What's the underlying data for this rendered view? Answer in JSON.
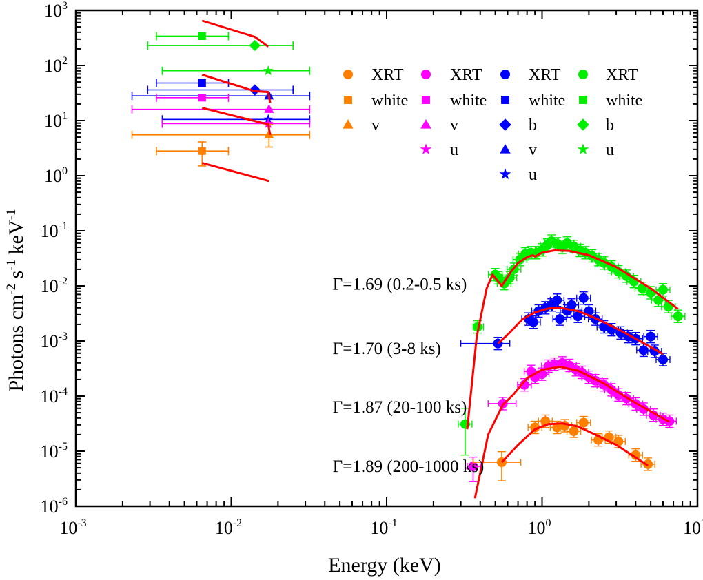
{
  "chart_data": {
    "type": "scatter",
    "title": "",
    "xlabel": "Energy (keV)",
    "ylabel": "Photons cm^-2 s^-1 keV^-1",
    "xscale": "log",
    "yscale": "log",
    "xlim": [
      0.001,
      10
    ],
    "ylim": [
      1e-06,
      1000
    ],
    "grid": false,
    "xticks": [
      {
        "base": "10",
        "exp": "-3",
        "value": 0.001
      },
      {
        "base": "10",
        "exp": "-2",
        "value": 0.01
      },
      {
        "base": "10",
        "exp": "-1",
        "value": 0.1
      },
      {
        "base": "10",
        "exp": "0",
        "value": 1
      },
      {
        "base": "10",
        "exp": "1",
        "value": 10
      }
    ],
    "yticks": [
      {
        "base": "10",
        "exp": "3",
        "value": 1000
      },
      {
        "base": "10",
        "exp": "2",
        "value": 100
      },
      {
        "base": "10",
        "exp": "1",
        "value": 10
      },
      {
        "base": "10",
        "exp": "0",
        "value": 1
      },
      {
        "base": "10",
        "exp": "-1",
        "value": 0.1
      },
      {
        "base": "10",
        "exp": "-2",
        "value": 0.01
      },
      {
        "base": "10",
        "exp": "-3",
        "value": 0.001
      },
      {
        "base": "10",
        "exp": "-4",
        "value": 0.0001
      },
      {
        "base": "10",
        "exp": "-5",
        "value": 1e-05
      },
      {
        "base": "10",
        "exp": "-6",
        "value": 1e-06
      }
    ],
    "ylabel_parts": {
      "main": "Photons cm",
      "exp1": "-2",
      "mid": " s",
      "exp2": "-1",
      "end": " keV",
      "exp3": "-1"
    },
    "legend": {
      "placement": "top-right",
      "columns": [
        {
          "color": "#ff8000",
          "entries": [
            {
              "marker": "circle",
              "label": "XRT"
            },
            {
              "marker": "square",
              "label": "white"
            },
            {
              "marker": "triangle",
              "label": "v"
            }
          ]
        },
        {
          "color": "#ff00ff",
          "entries": [
            {
              "marker": "circle",
              "label": "XRT"
            },
            {
              "marker": "square",
              "label": "white"
            },
            {
              "marker": "triangle",
              "label": "v"
            },
            {
              "marker": "star",
              "label": "u"
            }
          ]
        },
        {
          "color": "#0000ff",
          "entries": [
            {
              "marker": "circle",
              "label": "XRT"
            },
            {
              "marker": "square",
              "label": "white"
            },
            {
              "marker": "diamond",
              "label": "b"
            },
            {
              "marker": "triangle",
              "label": "v"
            },
            {
              "marker": "star",
              "label": "u"
            }
          ]
        },
        {
          "color": "#00ee00",
          "entries": [
            {
              "marker": "circle",
              "label": "XRT"
            },
            {
              "marker": "square",
              "label": "white"
            },
            {
              "marker": "diamond",
              "label": "b"
            },
            {
              "marker": "star",
              "label": "u"
            }
          ]
        }
      ]
    },
    "annotations": [
      {
        "text": "Γ=1.69 (0.2-0.5 ks)",
        "x": 0.045,
        "y": 0.011
      },
      {
        "text": "Γ=1.70 (3-8 ks)",
        "x": 0.045,
        "y": 0.00075
      },
      {
        "text": "Γ=1.87 (20-100 ks)",
        "x": 0.045,
        "y": 6.5e-05
      },
      {
        "text": "Γ=1.89 (200-1000 ks)",
        "x": 0.045,
        "y": 5.5e-06
      }
    ],
    "model_color": "#ff0000",
    "series": [
      {
        "name": "0.2-0.5 ks",
        "color": "#00ee00",
        "gamma": 1.69,
        "uvot": [
          {
            "filter": "white",
            "marker": "square",
            "x": 0.0065,
            "y": 340,
            "xlo": 0.0033,
            "xhi": 0.0096
          },
          {
            "filter": "b",
            "marker": "diamond",
            "x": 0.0142,
            "y": 230,
            "xlo": 0.0029,
            "xhi": 0.025
          },
          {
            "filter": "u",
            "marker": "star",
            "x": 0.0173,
            "y": 80,
            "xlo": 0.0036,
            "xhi": 0.032
          }
        ],
        "xrt": [
          {
            "x": 0.32,
            "y": 3.1e-05,
            "ylo": 8.5e-06,
            "yhi": 6e-05
          },
          {
            "x": 0.385,
            "y": 0.0018,
            "xlo": 0.36,
            "xhi": 0.42
          },
          {
            "x": 0.5,
            "y": 0.016
          },
          {
            "x": 0.52,
            "y": 0.014
          },
          {
            "x": 0.57,
            "y": 0.011
          },
          {
            "x": 0.62,
            "y": 0.014
          },
          {
            "x": 0.66,
            "y": 0.02
          },
          {
            "x": 0.72,
            "y": 0.03
          },
          {
            "x": 0.78,
            "y": 0.038
          },
          {
            "x": 0.85,
            "y": 0.04
          },
          {
            "x": 0.92,
            "y": 0.04
          },
          {
            "x": 1.0,
            "y": 0.045
          },
          {
            "x": 1.08,
            "y": 0.055
          },
          {
            "x": 1.15,
            "y": 0.065
          },
          {
            "x": 1.25,
            "y": 0.058
          },
          {
            "x": 1.35,
            "y": 0.05
          },
          {
            "x": 1.45,
            "y": 0.06
          },
          {
            "x": 1.6,
            "y": 0.052
          },
          {
            "x": 1.75,
            "y": 0.044
          },
          {
            "x": 1.9,
            "y": 0.04
          },
          {
            "x": 2.1,
            "y": 0.035
          },
          {
            "x": 2.3,
            "y": 0.03
          },
          {
            "x": 2.5,
            "y": 0.026
          },
          {
            "x": 2.8,
            "y": 0.022
          },
          {
            "x": 3.1,
            "y": 0.018
          },
          {
            "x": 3.5,
            "y": 0.015
          },
          {
            "x": 3.9,
            "y": 0.012
          },
          {
            "x": 4.4,
            "y": 0.009
          },
          {
            "x": 5.0,
            "y": 0.0075
          },
          {
            "x": 5.6,
            "y": 0.0055
          },
          {
            "x": 6.0,
            "y": 0.0085
          },
          {
            "x": 6.5,
            "y": 0.0042
          },
          {
            "x": 7.5,
            "y": 0.0028
          }
        ],
        "model": [
          {
            "x": 0.0065,
            "y": 650
          },
          {
            "x": 0.0142,
            "y": 330
          },
          {
            "x": 0.0173,
            "y": 220
          }
        ],
        "model_xrt": [
          {
            "x": 0.33,
            "y": 2.5e-05
          },
          {
            "x": 0.38,
            "y": 0.0012
          },
          {
            "x": 0.44,
            "y": 0.009
          },
          {
            "x": 0.48,
            "y": 0.016
          },
          {
            "x": 0.55,
            "y": 0.01
          },
          {
            "x": 0.63,
            "y": 0.018
          },
          {
            "x": 0.7,
            "y": 0.026
          },
          {
            "x": 0.8,
            "y": 0.033
          },
          {
            "x": 0.87,
            "y": 0.036
          },
          {
            "x": 0.9,
            "y": 0.034
          },
          {
            "x": 1.0,
            "y": 0.04
          },
          {
            "x": 1.2,
            "y": 0.044
          },
          {
            "x": 1.5,
            "y": 0.043
          },
          {
            "x": 2.0,
            "y": 0.036
          },
          {
            "x": 3.0,
            "y": 0.022
          },
          {
            "x": 5.0,
            "y": 0.009
          },
          {
            "x": 7.5,
            "y": 0.0038
          }
        ]
      },
      {
        "name": "3-8 ks",
        "color": "#0000ff",
        "gamma": 1.7,
        "uvot": [
          {
            "filter": "white",
            "marker": "square",
            "x": 0.0065,
            "y": 48,
            "xlo": 0.0033,
            "xhi": 0.0096
          },
          {
            "filter": "b",
            "marker": "diamond",
            "x": 0.0142,
            "y": 36,
            "xlo": 0.0029,
            "xhi": 0.025
          },
          {
            "filter": "v",
            "marker": "triangle",
            "x": 0.0175,
            "y": 28,
            "xlo": 0.0023,
            "xhi": 0.032
          },
          {
            "filter": "u",
            "marker": "star",
            "x": 0.0173,
            "y": 10.5,
            "xlo": 0.0036,
            "xhi": 0.032
          }
        ],
        "xrt": [
          {
            "x": 0.52,
            "y": 0.0009,
            "xlo": 0.3,
            "xhi": 0.62
          },
          {
            "x": 0.82,
            "y": 0.0025
          },
          {
            "x": 0.88,
            "y": 0.0022
          },
          {
            "x": 0.95,
            "y": 0.0035
          },
          {
            "x": 1.05,
            "y": 0.004
          },
          {
            "x": 1.15,
            "y": 0.0045
          },
          {
            "x": 1.25,
            "y": 0.0055
          },
          {
            "x": 1.3,
            "y": 0.0025
          },
          {
            "x": 1.45,
            "y": 0.0035
          },
          {
            "x": 1.55,
            "y": 0.0045
          },
          {
            "x": 1.7,
            "y": 0.0028
          },
          {
            "x": 1.85,
            "y": 0.006
          },
          {
            "x": 2.0,
            "y": 0.0035
          },
          {
            "x": 2.2,
            "y": 0.0025
          },
          {
            "x": 2.5,
            "y": 0.0018
          },
          {
            "x": 2.8,
            "y": 0.0016
          },
          {
            "x": 3.2,
            "y": 0.0014
          },
          {
            "x": 3.6,
            "y": 0.0012
          },
          {
            "x": 4.0,
            "y": 0.0011
          },
          {
            "x": 4.5,
            "y": 0.00068
          },
          {
            "x": 5.0,
            "y": 0.0012
          },
          {
            "x": 5.3,
            "y": 0.00065
          },
          {
            "x": 6.0,
            "y": 0.00046
          }
        ],
        "model": [
          {
            "x": 0.0065,
            "y": 68
          },
          {
            "x": 0.0142,
            "y": 34
          },
          {
            "x": 0.0173,
            "y": 33
          },
          {
            "x": 0.0178,
            "y": 21
          }
        ],
        "model_xrt": [
          {
            "x": 0.52,
            "y": 0.0009
          },
          {
            "x": 0.6,
            "y": 0.0013
          },
          {
            "x": 0.75,
            "y": 0.0025
          },
          {
            "x": 0.9,
            "y": 0.0033
          },
          {
            "x": 1.1,
            "y": 0.0039
          },
          {
            "x": 1.3,
            "y": 0.004
          },
          {
            "x": 1.7,
            "y": 0.0035
          },
          {
            "x": 2.2,
            "y": 0.0026
          },
          {
            "x": 3.0,
            "y": 0.0017
          },
          {
            "x": 4.0,
            "y": 0.0011
          },
          {
            "x": 6.0,
            "y": 0.00058
          }
        ]
      },
      {
        "name": "20-100 ks",
        "color": "#ff00ff",
        "gamma": 1.87,
        "uvot": [
          {
            "filter": "white",
            "marker": "square",
            "x": 0.0065,
            "y": 26,
            "xlo": 0.0033,
            "xhi": 0.0096
          },
          {
            "filter": "v",
            "marker": "triangle",
            "x": 0.0175,
            "y": 16,
            "xlo": 0.0023,
            "xhi": 0.032
          },
          {
            "filter": "u",
            "marker": "star",
            "x": 0.0173,
            "y": 8.8,
            "xlo": 0.0036,
            "xhi": 0.032
          }
        ],
        "xrt": [
          {
            "x": 0.36,
            "y": 5.3e-06,
            "xlo": 0.33,
            "xhi": 0.4,
            "ylo": 2.8e-06,
            "yhi": 7.8e-06
          },
          {
            "x": 0.56,
            "y": 7.3e-05,
            "xlo": 0.45,
            "xhi": 0.68
          },
          {
            "x": 0.77,
            "y": 0.00016
          },
          {
            "x": 0.85,
            "y": 0.00028
          },
          {
            "x": 0.9,
            "y": 0.00022
          },
          {
            "x": 1.0,
            "y": 0.00025
          },
          {
            "x": 1.1,
            "y": 0.00035
          },
          {
            "x": 1.2,
            "y": 0.00038
          },
          {
            "x": 1.35,
            "y": 0.0004
          },
          {
            "x": 1.5,
            "y": 0.00036
          },
          {
            "x": 1.65,
            "y": 0.0003
          },
          {
            "x": 1.8,
            "y": 0.00027
          },
          {
            "x": 2.0,
            "y": 0.00022
          },
          {
            "x": 2.2,
            "y": 0.00019
          },
          {
            "x": 2.5,
            "y": 0.00016
          },
          {
            "x": 2.8,
            "y": 0.00013
          },
          {
            "x": 3.1,
            "y": 0.000105
          },
          {
            "x": 3.5,
            "y": 9e-05
          },
          {
            "x": 4.0,
            "y": 7.2e-05
          },
          {
            "x": 4.5,
            "y": 5.8e-05
          },
          {
            "x": 5.2,
            "y": 4.5e-05
          },
          {
            "x": 6.0,
            "y": 3.8e-05
          },
          {
            "x": 6.6,
            "y": 3.5e-05
          }
        ],
        "model": [
          {
            "x": 0.0065,
            "y": 17
          },
          {
            "x": 0.0173,
            "y": 8.5
          },
          {
            "x": 0.0178,
            "y": 5.5
          }
        ],
        "model_xrt": [
          {
            "x": 0.37,
            "y": 1.4e-06
          },
          {
            "x": 0.45,
            "y": 2e-05
          },
          {
            "x": 0.56,
            "y": 7e-05
          },
          {
            "x": 0.65,
            "y": 0.000105
          },
          {
            "x": 0.8,
            "y": 0.00021
          },
          {
            "x": 1.0,
            "y": 0.0003
          },
          {
            "x": 1.3,
            "y": 0.00034
          },
          {
            "x": 1.7,
            "y": 0.00029
          },
          {
            "x": 2.5,
            "y": 0.00017
          },
          {
            "x": 4.0,
            "y": 7.5e-05
          },
          {
            "x": 6.6,
            "y": 3.4e-05
          }
        ]
      },
      {
        "name": "200-1000 ks",
        "color": "#ff8000",
        "gamma": 1.89,
        "uvot": [
          {
            "filter": "white",
            "marker": "square",
            "x": 0.0065,
            "y": 2.8,
            "xlo": 0.0033,
            "xhi": 0.0096,
            "ylo": 1.5,
            "yhi": 4.1
          },
          {
            "filter": "v",
            "marker": "triangle",
            "x": 0.0175,
            "y": 5.5,
            "xlo": 0.0023,
            "xhi": 0.032,
            "ylo": 3.3,
            "yhi": 8.5
          }
        ],
        "xrt": [
          {
            "x": 0.55,
            "y": 6.3e-06,
            "xlo": 0.36,
            "xhi": 0.73,
            "ylo": 2.9e-06,
            "yhi": 9.8e-06
          },
          {
            "x": 0.9,
            "y": 2.7e-05
          },
          {
            "x": 1.05,
            "y": 3.5e-05
          },
          {
            "x": 1.25,
            "y": 2.7e-05
          },
          {
            "x": 1.4,
            "y": 2.9e-05
          },
          {
            "x": 1.6,
            "y": 2.3e-05
          },
          {
            "x": 1.85,
            "y": 3.3e-05
          },
          {
            "x": 2.3,
            "y": 1.6e-05
          },
          {
            "x": 2.7,
            "y": 1.8e-05
          },
          {
            "x": 3.1,
            "y": 1.5e-05
          },
          {
            "x": 4.0,
            "y": 8.5e-06
          },
          {
            "x": 4.8,
            "y": 5.8e-06
          }
        ],
        "model": [
          {
            "x": 0.0065,
            "y": 1.7
          },
          {
            "x": 0.0175,
            "y": 0.8
          }
        ],
        "model_xrt": [
          {
            "x": 0.55,
            "y": 6.3e-06
          },
          {
            "x": 0.7,
            "y": 1.3e-05
          },
          {
            "x": 0.9,
            "y": 2.5e-05
          },
          {
            "x": 1.1,
            "y": 3.1e-05
          },
          {
            "x": 1.35,
            "y": 3.2e-05
          },
          {
            "x": 1.7,
            "y": 2.8e-05
          },
          {
            "x": 2.2,
            "y": 2e-05
          },
          {
            "x": 3.0,
            "y": 1.3e-05
          },
          {
            "x": 4.8,
            "y": 5.5e-06
          }
        ]
      }
    ]
  }
}
